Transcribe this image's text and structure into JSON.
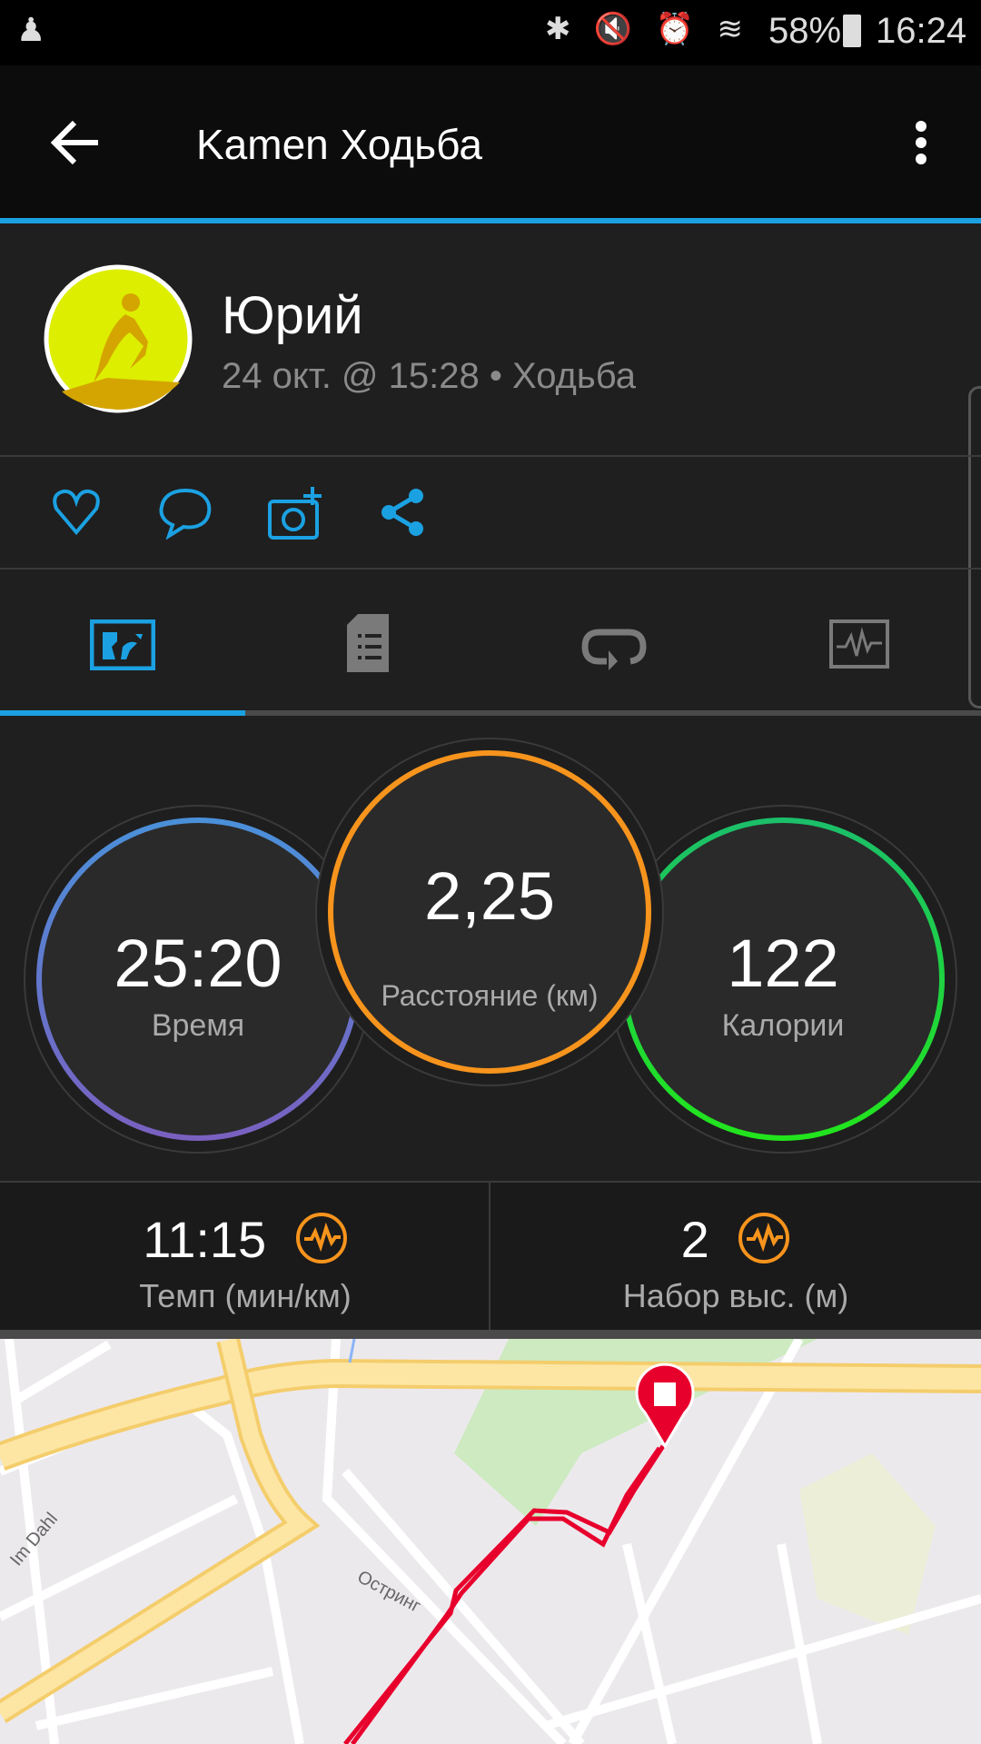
{
  "status_bar": {
    "battery": "58%",
    "time": "16:24"
  },
  "app_bar": {
    "title": "Kamen Ходьба"
  },
  "profile": {
    "name": "Юрий",
    "subtitle": "24 окт. @ 15:28 • Ходьба"
  },
  "actions": [
    "like",
    "comment",
    "add-photo",
    "share"
  ],
  "tabs": [
    {
      "icon": "map-overview-icon",
      "active": true
    },
    {
      "icon": "details-icon"
    },
    {
      "icon": "laps-icon"
    },
    {
      "icon": "chart-icon"
    }
  ],
  "stats": {
    "time": {
      "value": "25:20",
      "label": "Время"
    },
    "distance": {
      "value": "2,25",
      "label": "Расстояние (км)"
    },
    "calories": {
      "value": "122",
      "label": "Калории"
    },
    "pace": {
      "value": "11:15",
      "label": "Темп (мин/км)"
    },
    "elevation": {
      "value": "2",
      "label": "Набор выс. (м)"
    }
  },
  "map": {
    "labels": [
      "Im Dahl",
      "Остринг"
    ],
    "track_color": "#e8002d"
  },
  "colors": {
    "accent": "#1ba1e2",
    "time_ring": "#4a90d9",
    "distance_ring": "#f7941d",
    "calories_ring": "#2ecc40"
  }
}
